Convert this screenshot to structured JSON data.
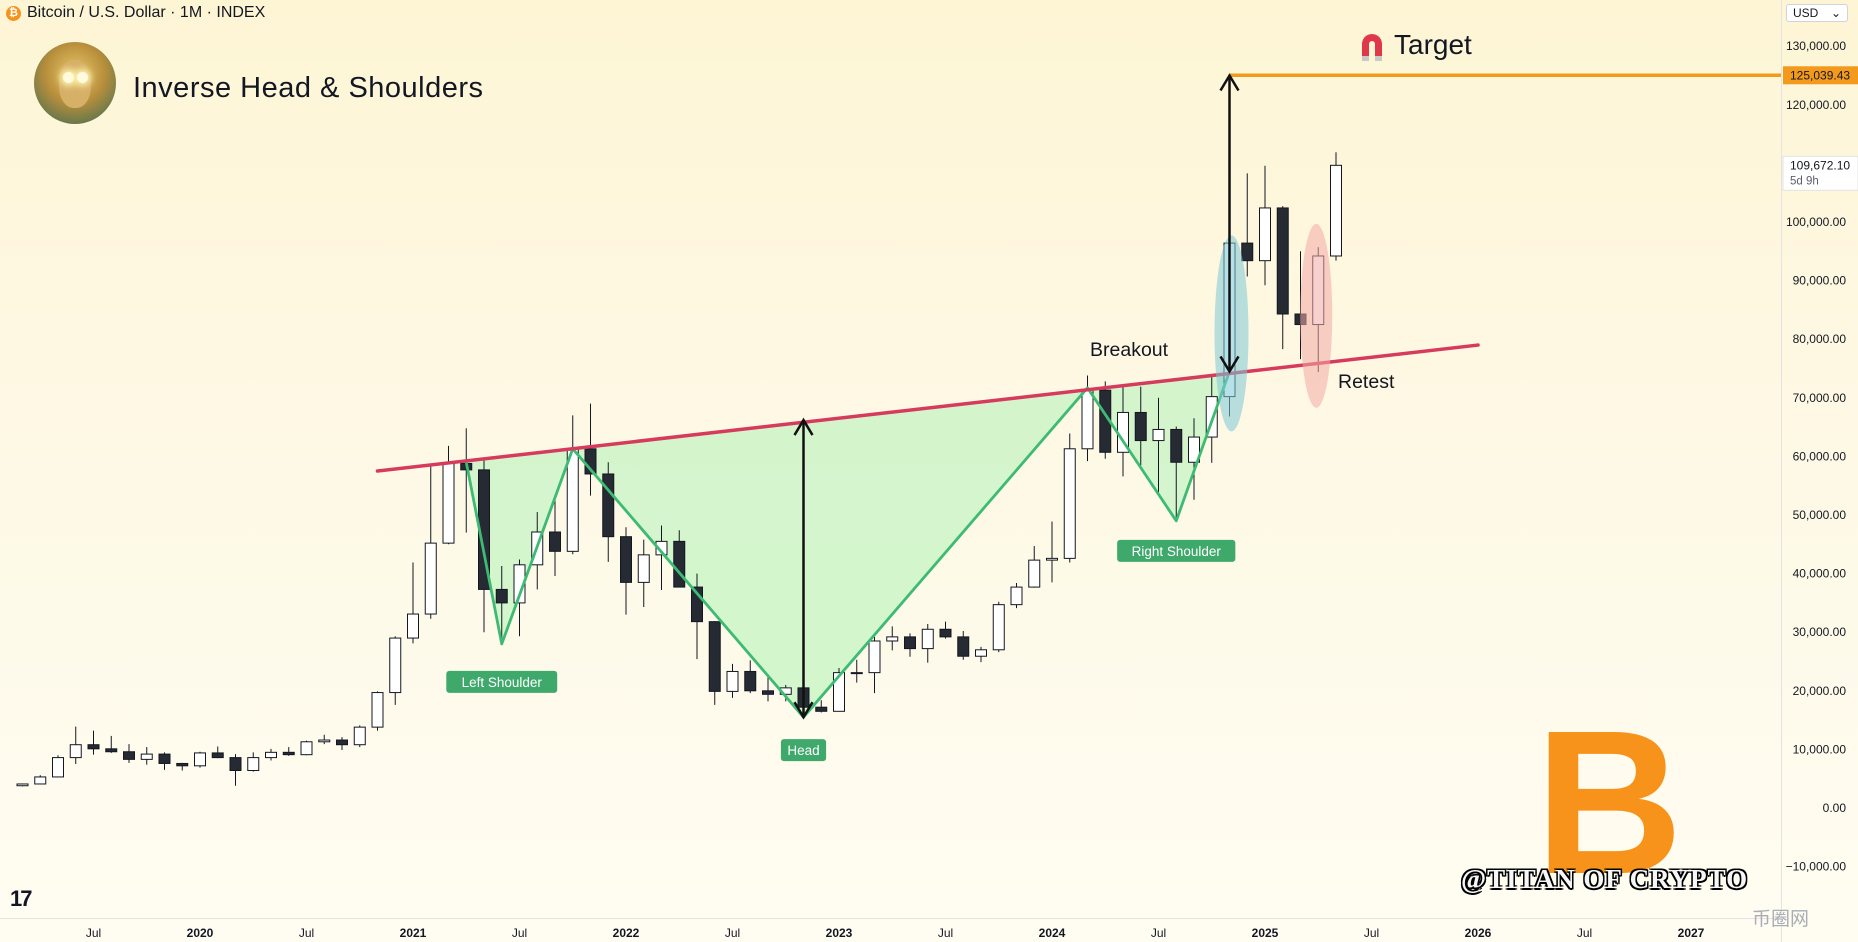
{
  "header": {
    "coin_symbol": "₿",
    "title": "Bitcoin / U.S. Dollar · 1M · INDEX",
    "chart_name": "Inverse Head & Shoulders",
    "currency": "USD",
    "currency_caret": "⌄"
  },
  "branding": {
    "tv_logo": "17",
    "btc_logo": "B",
    "watermark": "@TITAN OF CRYPTO",
    "site_mark": "币圈网"
  },
  "colors": {
    "neckline": "#d63a5c",
    "pattern_line": "#3dba73",
    "pattern_fill": "#cdf5c8",
    "target_line": "#f39a1c",
    "label_bg": "#3fa96b",
    "bear_candle": "#262a33",
    "bull_candle": "#ffffff",
    "breakout_ellipse": "#7bc8d6",
    "retest_ellipse": "#f2aaa6"
  },
  "chart_data": {
    "type": "candlestick",
    "title": "Bitcoin / U.S. Dollar · 1M · INDEX",
    "interval": "1M",
    "ylim": [
      -13000,
      140000
    ],
    "y_ticks": [
      -10000,
      0,
      10000,
      20000,
      30000,
      40000,
      50000,
      60000,
      70000,
      80000,
      90000,
      100000,
      110000,
      120000,
      130000
    ],
    "y_tick_labels": [
      "−10,000.00",
      "0.00",
      "10,000.00",
      "20,000.00",
      "30,000.00",
      "40,000.00",
      "50,000.00",
      "60,000.00",
      "70,000.00",
      "80,000.00",
      "90,000.00",
      "100,000.00",
      "110,000.00",
      "120,000.00",
      "130,000.00"
    ],
    "x_tick_labels": [
      {
        "label": "Jul",
        "date": "2019-07"
      },
      {
        "label": "2020",
        "date": "2020-01"
      },
      {
        "label": "Jul",
        "date": "2020-07"
      },
      {
        "label": "2021",
        "date": "2021-01"
      },
      {
        "label": "Jul",
        "date": "2021-07"
      },
      {
        "label": "2022",
        "date": "2022-01"
      },
      {
        "label": "Jul",
        "date": "2022-07"
      },
      {
        "label": "2023",
        "date": "2023-01"
      },
      {
        "label": "Jul",
        "date": "2023-07"
      },
      {
        "label": "2024",
        "date": "2024-01"
      },
      {
        "label": "Jul",
        "date": "2024-07"
      },
      {
        "label": "2025",
        "date": "2025-01"
      },
      {
        "label": "Jul",
        "date": "2025-07"
      },
      {
        "label": "2026",
        "date": "2026-01"
      },
      {
        "label": "Jul",
        "date": "2026-07"
      },
      {
        "label": "2027",
        "date": "2027-01"
      }
    ],
    "candles": [
      {
        "d": "2019-03",
        "o": 3800,
        "h": 4100,
        "l": 3700,
        "c": 4100
      },
      {
        "d": "2019-04",
        "o": 4100,
        "h": 5600,
        "l": 4100,
        "c": 5300
      },
      {
        "d": "2019-05",
        "o": 5300,
        "h": 9000,
        "l": 5300,
        "c": 8600
      },
      {
        "d": "2019-06",
        "o": 8600,
        "h": 13900,
        "l": 7500,
        "c": 10800
      },
      {
        "d": "2019-07",
        "o": 10800,
        "h": 13200,
        "l": 9100,
        "c": 10100
      },
      {
        "d": "2019-08",
        "o": 10100,
        "h": 12300,
        "l": 9400,
        "c": 9600
      },
      {
        "d": "2019-09",
        "o": 9600,
        "h": 10900,
        "l": 7700,
        "c": 8300
      },
      {
        "d": "2019-10",
        "o": 8300,
        "h": 10400,
        "l": 7400,
        "c": 9200
      },
      {
        "d": "2019-11",
        "o": 9200,
        "h": 9500,
        "l": 6500,
        "c": 7600
      },
      {
        "d": "2019-12",
        "o": 7600,
        "h": 7700,
        "l": 6400,
        "c": 7200
      },
      {
        "d": "2020-01",
        "o": 7200,
        "h": 9600,
        "l": 6900,
        "c": 9400
      },
      {
        "d": "2020-02",
        "o": 9400,
        "h": 10500,
        "l": 8500,
        "c": 8600
      },
      {
        "d": "2020-03",
        "o": 8600,
        "h": 9200,
        "l": 3800,
        "c": 6400
      },
      {
        "d": "2020-04",
        "o": 6400,
        "h": 9500,
        "l": 6200,
        "c": 8600
      },
      {
        "d": "2020-05",
        "o": 8600,
        "h": 10100,
        "l": 8100,
        "c": 9500
      },
      {
        "d": "2020-06",
        "o": 9500,
        "h": 10400,
        "l": 8900,
        "c": 9100
      },
      {
        "d": "2020-07",
        "o": 9100,
        "h": 11500,
        "l": 9000,
        "c": 11300
      },
      {
        "d": "2020-08",
        "o": 11300,
        "h": 12500,
        "l": 10900,
        "c": 11600
      },
      {
        "d": "2020-09",
        "o": 11600,
        "h": 12100,
        "l": 9900,
        "c": 10800
      },
      {
        "d": "2020-10",
        "o": 10800,
        "h": 14100,
        "l": 10400,
        "c": 13800
      },
      {
        "d": "2020-11",
        "o": 13800,
        "h": 19900,
        "l": 13200,
        "c": 19700
      },
      {
        "d": "2020-12",
        "o": 19700,
        "h": 29300,
        "l": 17600,
        "c": 29000
      },
      {
        "d": "2021-01",
        "o": 29000,
        "h": 41900,
        "l": 28100,
        "c": 33100
      },
      {
        "d": "2021-02",
        "o": 33100,
        "h": 58400,
        "l": 32300,
        "c": 45200
      },
      {
        "d": "2021-03",
        "o": 45200,
        "h": 61800,
        "l": 45000,
        "c": 58800
      },
      {
        "d": "2021-04",
        "o": 58800,
        "h": 64800,
        "l": 47000,
        "c": 57700
      },
      {
        "d": "2021-05",
        "o": 57700,
        "h": 59500,
        "l": 30000,
        "c": 37300
      },
      {
        "d": "2021-06",
        "o": 37300,
        "h": 41300,
        "l": 28800,
        "c": 35000
      },
      {
        "d": "2021-07",
        "o": 35000,
        "h": 42400,
        "l": 29300,
        "c": 41500
      },
      {
        "d": "2021-08",
        "o": 41500,
        "h": 50500,
        "l": 37300,
        "c": 47100
      },
      {
        "d": "2021-09",
        "o": 47100,
        "h": 52900,
        "l": 39600,
        "c": 43800
      },
      {
        "d": "2021-10",
        "o": 43800,
        "h": 67000,
        "l": 43300,
        "c": 61300
      },
      {
        "d": "2021-11",
        "o": 61300,
        "h": 69000,
        "l": 53300,
        "c": 57000
      },
      {
        "d": "2021-12",
        "o": 57000,
        "h": 59000,
        "l": 42000,
        "c": 46300
      },
      {
        "d": "2022-01",
        "o": 46300,
        "h": 47900,
        "l": 33000,
        "c": 38500
      },
      {
        "d": "2022-02",
        "o": 38500,
        "h": 45800,
        "l": 34300,
        "c": 43200
      },
      {
        "d": "2022-03",
        "o": 43200,
        "h": 48200,
        "l": 37200,
        "c": 45500
      },
      {
        "d": "2022-04",
        "o": 45500,
        "h": 47400,
        "l": 37700,
        "c": 37700
      },
      {
        "d": "2022-05",
        "o": 37700,
        "h": 40000,
        "l": 25400,
        "c": 31800
      },
      {
        "d": "2022-06",
        "o": 31800,
        "h": 31900,
        "l": 17600,
        "c": 19900
      },
      {
        "d": "2022-07",
        "o": 19900,
        "h": 24600,
        "l": 18800,
        "c": 23300
      },
      {
        "d": "2022-08",
        "o": 23300,
        "h": 25200,
        "l": 19600,
        "c": 20000
      },
      {
        "d": "2022-09",
        "o": 20000,
        "h": 22800,
        "l": 18200,
        "c": 19400
      },
      {
        "d": "2022-10",
        "o": 19400,
        "h": 21000,
        "l": 18200,
        "c": 20500
      },
      {
        "d": "2022-11",
        "o": 20500,
        "h": 21500,
        "l": 15500,
        "c": 17200
      },
      {
        "d": "2022-12",
        "o": 17200,
        "h": 18400,
        "l": 16300,
        "c": 16500
      },
      {
        "d": "2023-01",
        "o": 16500,
        "h": 23900,
        "l": 16500,
        "c": 23100
      },
      {
        "d": "2023-02",
        "o": 23100,
        "h": 25300,
        "l": 21400,
        "c": 23100
      },
      {
        "d": "2023-03",
        "o": 23100,
        "h": 29200,
        "l": 19600,
        "c": 28500
      },
      {
        "d": "2023-04",
        "o": 28500,
        "h": 31000,
        "l": 26900,
        "c": 29200
      },
      {
        "d": "2023-05",
        "o": 29200,
        "h": 29800,
        "l": 25800,
        "c": 27200
      },
      {
        "d": "2023-06",
        "o": 27200,
        "h": 31400,
        "l": 24800,
        "c": 30500
      },
      {
        "d": "2023-07",
        "o": 30500,
        "h": 31800,
        "l": 28900,
        "c": 29200
      },
      {
        "d": "2023-08",
        "o": 29200,
        "h": 30200,
        "l": 25300,
        "c": 25900
      },
      {
        "d": "2023-09",
        "o": 25900,
        "h": 27500,
        "l": 24900,
        "c": 27000
      },
      {
        "d": "2023-10",
        "o": 27000,
        "h": 35200,
        "l": 26600,
        "c": 34700
      },
      {
        "d": "2023-11",
        "o": 34700,
        "h": 38400,
        "l": 34100,
        "c": 37700
      },
      {
        "d": "2023-12",
        "o": 37700,
        "h": 44700,
        "l": 37600,
        "c": 42300
      },
      {
        "d": "2024-01",
        "o": 42300,
        "h": 48900,
        "l": 38500,
        "c": 42600
      },
      {
        "d": "2024-02",
        "o": 42600,
        "h": 63900,
        "l": 41900,
        "c": 61300
      },
      {
        "d": "2024-03",
        "o": 61300,
        "h": 73800,
        "l": 59200,
        "c": 71300
      },
      {
        "d": "2024-04",
        "o": 71300,
        "h": 72800,
        "l": 59600,
        "c": 60700
      },
      {
        "d": "2024-05",
        "o": 60700,
        "h": 71900,
        "l": 56600,
        "c": 67500
      },
      {
        "d": "2024-06",
        "o": 67500,
        "h": 71900,
        "l": 58500,
        "c": 62700
      },
      {
        "d": "2024-07",
        "o": 62700,
        "h": 70000,
        "l": 53400,
        "c": 64600
      },
      {
        "d": "2024-08",
        "o": 64600,
        "h": 65100,
        "l": 49000,
        "c": 59000
      },
      {
        "d": "2024-09",
        "o": 59000,
        "h": 66500,
        "l": 52600,
        "c": 63300
      },
      {
        "d": "2024-10",
        "o": 63300,
        "h": 73600,
        "l": 58900,
        "c": 70200
      },
      {
        "d": "2024-11",
        "o": 70200,
        "h": 99600,
        "l": 66800,
        "c": 96400
      },
      {
        "d": "2024-12",
        "o": 96400,
        "h": 108300,
        "l": 90700,
        "c": 93400
      },
      {
        "d": "2025-01",
        "o": 93400,
        "h": 109600,
        "l": 89200,
        "c": 102400
      },
      {
        "d": "2025-02",
        "o": 102400,
        "h": 102700,
        "l": 78300,
        "c": 84300
      },
      {
        "d": "2025-03",
        "o": 84300,
        "h": 95000,
        "l": 76600,
        "c": 82500
      },
      {
        "d": "2025-04",
        "o": 82500,
        "h": 95700,
        "l": 74400,
        "c": 94200
      },
      {
        "d": "2025-05",
        "o": 94200,
        "h": 111900,
        "l": 93400,
        "c": 109672.1
      }
    ],
    "neckline": [
      {
        "d": "2020-11",
        "v": 57500
      },
      {
        "d": "2026-01",
        "v": 79000
      }
    ],
    "pattern_path": [
      {
        "d": "2021-04",
        "v": 59000
      },
      {
        "d": "2021-06",
        "v": 28000
      },
      {
        "d": "2021-10",
        "v": 61300
      },
      {
        "d": "2022-11",
        "v": 15500
      },
      {
        "d": "2024-03",
        "v": 71700
      },
      {
        "d": "2024-08",
        "v": 49000
      },
      {
        "d": "2024-11",
        "v": 74500
      }
    ],
    "target_price": 125039.43,
    "target_price_label": "125,039.43",
    "last_price_label": "109,672.10",
    "countdown_label": "5d 9h",
    "arrows": [
      {
        "d": "2022-11",
        "from": 15500,
        "to": 66200
      },
      {
        "d": "2024-11",
        "from": 74500,
        "to": 125000
      }
    ],
    "annotations": {
      "left_shoulder": "Left Shoulder",
      "head": "Head",
      "right_shoulder": "Right Shoulder",
      "breakout": "Breakout",
      "retest": "Retest",
      "target": "Target"
    }
  }
}
